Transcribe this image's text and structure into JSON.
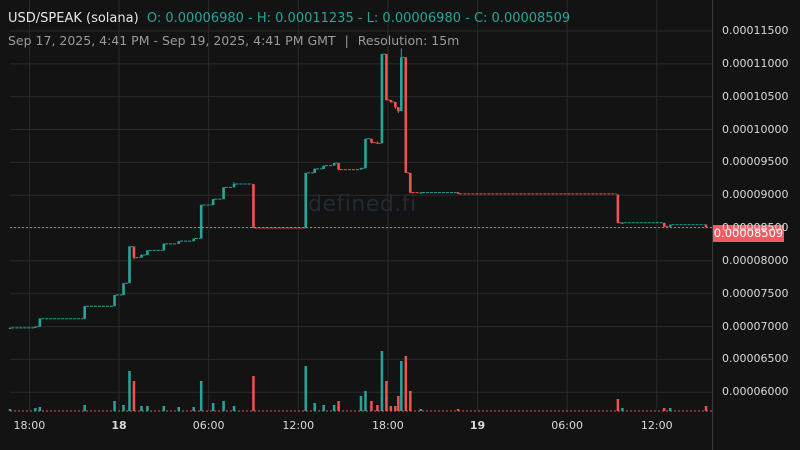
{
  "header": {
    "symbol": "USD/SPEAK (solana)",
    "ohlc": "O: 0.00006980 - H: 0.00011235 - L: 0.00006980 - C: 0.00008509",
    "range": "Sep 17, 2025, 4:41 PM - Sep 19, 2025, 4:41 PM GMT",
    "separator": "|",
    "resolution": "Resolution: 15m"
  },
  "watermark": "defined.fi",
  "current_price_label": "0.00008509",
  "colors": {
    "up": "#26a69a",
    "down": "#ef5350",
    "price_line": "#f05a64",
    "background": "#131313",
    "grid": "#2a2a2a"
  },
  "chart_data": {
    "type": "candlestick",
    "title": "USD/SPEAK (solana)",
    "resolution": "15m",
    "open": 6.98e-05,
    "high": 0.00011235,
    "low": 6.98e-05,
    "close": 8.509e-05,
    "ylim": [
      5.73e-05,
      0.0001185
    ],
    "y_ticks": [
      "0.00011500",
      "0.00011000",
      "0.00010500",
      "0.00010000",
      "0.00009500",
      "0.00009000",
      "0.00008500",
      "0.00008000",
      "0.00007500",
      "0.00007000",
      "0.00006500",
      "0.00006000"
    ],
    "x_ticks": [
      {
        "label": "18:00",
        "t": 1.3,
        "day": false
      },
      {
        "label": "18",
        "t": 7.3,
        "day": true
      },
      {
        "label": "06:00",
        "t": 13.3,
        "day": false
      },
      {
        "label": "12:00",
        "t": 19.3,
        "day": false
      },
      {
        "label": "18:00",
        "t": 25.3,
        "day": false
      },
      {
        "label": "19",
        "t": 31.3,
        "day": true
      },
      {
        "label": "06:00",
        "t": 37.3,
        "day": false
      },
      {
        "label": "12:00",
        "t": 43.3,
        "day": false
      }
    ],
    "grid": true,
    "candles": [
      {
        "t": 0.0,
        "o": 6.98e-05,
        "h": 6.99e-05,
        "l": 6.98e-05,
        "c": 6.98e-05,
        "v": 2
      },
      {
        "t": 1.7,
        "o": 6.98e-05,
        "h": 7e-05,
        "l": 6.98e-05,
        "c": 7e-05,
        "v": 3
      },
      {
        "t": 2.0,
        "o": 7e-05,
        "h": 7.13e-05,
        "l": 7e-05,
        "c": 7.12e-05,
        "v": 4
      },
      {
        "t": 5.0,
        "o": 7.12e-05,
        "h": 7.31e-05,
        "l": 7.12e-05,
        "c": 7.31e-05,
        "v": 6
      },
      {
        "t": 7.0,
        "o": 7.31e-05,
        "h": 7.48e-05,
        "l": 7.31e-05,
        "c": 7.48e-05,
        "v": 10
      },
      {
        "t": 7.6,
        "o": 7.48e-05,
        "h": 7.66e-05,
        "l": 7.48e-05,
        "c": 7.66e-05,
        "v": 6
      },
      {
        "t": 8.0,
        "o": 7.66e-05,
        "h": 8.22e-05,
        "l": 7.66e-05,
        "c": 8.22e-05,
        "v": 40
      },
      {
        "t": 8.3,
        "o": 8.22e-05,
        "h": 8.22e-05,
        "l": 8.02e-05,
        "c": 8.05e-05,
        "v": 30
      },
      {
        "t": 8.8,
        "o": 8.05e-05,
        "h": 8.1e-05,
        "l": 8.05e-05,
        "c": 8.09e-05,
        "v": 5
      },
      {
        "t": 9.2,
        "o": 8.09e-05,
        "h": 8.16e-05,
        "l": 8.09e-05,
        "c": 8.16e-05,
        "v": 5
      },
      {
        "t": 10.3,
        "o": 8.16e-05,
        "h": 8.27e-05,
        "l": 8.16e-05,
        "c": 8.26e-05,
        "v": 5
      },
      {
        "t": 11.3,
        "o": 8.26e-05,
        "h": 8.3e-05,
        "l": 8.26e-05,
        "c": 8.3e-05,
        "v": 4
      },
      {
        "t": 12.3,
        "o": 8.3e-05,
        "h": 8.34e-05,
        "l": 8.3e-05,
        "c": 8.34e-05,
        "v": 4
      },
      {
        "t": 12.8,
        "o": 8.34e-05,
        "h": 8.86e-05,
        "l": 8.34e-05,
        "c": 8.85e-05,
        "v": 30
      },
      {
        "t": 13.6,
        "o": 8.85e-05,
        "h": 8.94e-05,
        "l": 8.85e-05,
        "c": 8.94e-05,
        "v": 8
      },
      {
        "t": 14.3,
        "o": 8.94e-05,
        "h": 9.12e-05,
        "l": 8.94e-05,
        "c": 9.12e-05,
        "v": 10
      },
      {
        "t": 15.0,
        "o": 9.12e-05,
        "h": 9.2e-05,
        "l": 9.12e-05,
        "c": 9.17e-05,
        "v": 5
      },
      {
        "t": 16.3,
        "o": 9.17e-05,
        "h": 9.17e-05,
        "l": 8.5e-05,
        "c": 8.5e-05,
        "v": 35
      },
      {
        "t": 19.8,
        "o": 8.5e-05,
        "h": 9.34e-05,
        "l": 8.5e-05,
        "c": 9.34e-05,
        "v": 45
      },
      {
        "t": 20.4,
        "o": 9.34e-05,
        "h": 9.41e-05,
        "l": 9.34e-05,
        "c": 9.4e-05,
        "v": 8
      },
      {
        "t": 21.0,
        "o": 9.4e-05,
        "h": 9.45e-05,
        "l": 9.4e-05,
        "c": 9.45e-05,
        "v": 6
      },
      {
        "t": 21.7,
        "o": 9.45e-05,
        "h": 9.49e-05,
        "l": 9.45e-05,
        "c": 9.49e-05,
        "v": 6
      },
      {
        "t": 22.0,
        "o": 9.49e-05,
        "h": 9.49e-05,
        "l": 9.38e-05,
        "c": 9.39e-05,
        "v": 10
      },
      {
        "t": 23.5,
        "o": 9.39e-05,
        "h": 9.42e-05,
        "l": 9.39e-05,
        "c": 9.41e-05,
        "v": 15
      },
      {
        "t": 23.8,
        "o": 9.41e-05,
        "h": 9.86e-05,
        "l": 9.41e-05,
        "c": 9.86e-05,
        "v": 20
      },
      {
        "t": 24.2,
        "o": 9.86e-05,
        "h": 9.86e-05,
        "l": 9.79e-05,
        "c": 9.8e-05,
        "v": 10
      },
      {
        "t": 24.6,
        "o": 9.8e-05,
        "h": 9.82e-05,
        "l": 9.78e-05,
        "c": 9.79e-05,
        "v": 6
      },
      {
        "t": 24.9,
        "o": 9.79e-05,
        "h": 0.0001115,
        "l": 9.79e-05,
        "c": 0.0001115,
        "v": 60
      },
      {
        "t": 25.2,
        "o": 0.0001115,
        "h": 0.0001115,
        "l": 0.0001044,
        "c": 0.0001045,
        "v": 30
      },
      {
        "t": 25.5,
        "o": 0.0001045,
        "h": 0.0001045,
        "l": 0.000104,
        "c": 0.0001042,
        "v": 5
      },
      {
        "t": 25.8,
        "o": 0.0001042,
        "h": 0.0001042,
        "l": 0.0001031,
        "c": 0.0001034,
        "v": 5
      },
      {
        "t": 26.0,
        "o": 0.0001034,
        "h": 0.0001034,
        "l": 0.0001025,
        "c": 0.0001028,
        "v": 15
      },
      {
        "t": 26.2,
        "o": 0.0001028,
        "h": 0.00011235,
        "l": 0.0001028,
        "c": 0.000111,
        "v": 50
      },
      {
        "t": 26.5,
        "o": 0.000111,
        "h": 0.000111,
        "l": 9.34e-05,
        "c": 9.34e-05,
        "v": 55
      },
      {
        "t": 26.8,
        "o": 9.34e-05,
        "h": 9.34e-05,
        "l": 9.03e-05,
        "c": 9.04e-05,
        "v": 20
      },
      {
        "t": 27.5,
        "o": 9.04e-05,
        "h": 9.05e-05,
        "l": 9.03e-05,
        "c": 9.04e-05,
        "v": 2
      },
      {
        "t": 30.0,
        "o": 9.04e-05,
        "h": 9.05e-05,
        "l": 9.02e-05,
        "c": 9.02e-05,
        "v": 2
      },
      {
        "t": 40.7,
        "o": 9.01e-05,
        "h": 9.01e-05,
        "l": 8.57e-05,
        "c": 8.58e-05,
        "v": 12
      },
      {
        "t": 41.0,
        "o": 8.58e-05,
        "h": 8.59e-05,
        "l": 8.57e-05,
        "c": 8.58e-05,
        "v": 3
      },
      {
        "t": 43.8,
        "o": 8.58e-05,
        "h": 8.58e-05,
        "l": 8.52e-05,
        "c": 8.52e-05,
        "v": 3
      },
      {
        "t": 44.2,
        "o": 8.52e-05,
        "h": 8.55e-05,
        "l": 8.52e-05,
        "c": 8.55e-05,
        "v": 3
      },
      {
        "t": 46.6,
        "o": 8.55e-05,
        "h": 8.56e-05,
        "l": 8.51e-05,
        "c": 8.51e-05,
        "v": 5
      }
    ]
  }
}
